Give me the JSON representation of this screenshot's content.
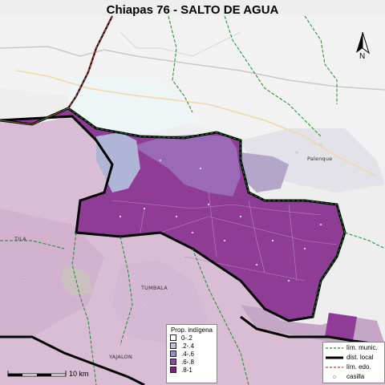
{
  "title": "Chiapas 76 - SALTO DE AGUA",
  "place_labels": {
    "palenque": "Palenque",
    "tila": "TILA",
    "tumbala": "TUMBALA",
    "yajalon": "YAJALON"
  },
  "legend_prop": {
    "title": "Prop. indígena",
    "items": [
      {
        "label": "0-.2",
        "color": "#ffffff"
      },
      {
        "label": ".2-.4",
        "color": "#b9c3de"
      },
      {
        "label": ".4-.6",
        "color": "#9d88c6"
      },
      {
        "label": ".6-.8",
        "color": "#8a4aa3"
      },
      {
        "label": ".8-1",
        "color": "#7a1f7e"
      }
    ]
  },
  "legend_lines": {
    "items": [
      {
        "label": "lím. munic.",
        "icon": "green-dashed-line"
      },
      {
        "label": "dist. local",
        "icon": "black-thick-line"
      },
      {
        "label": "lím. edo.",
        "icon": "red-dashed-line"
      },
      {
        "label": "casilla",
        "icon": "dot-marker"
      }
    ]
  },
  "scale": {
    "label": "10 km"
  },
  "north_arrow": {
    "label": "N"
  },
  "colors": {
    "district_fill": "#8e3c95",
    "district_fill_light": "#9a6ab6",
    "district_fill_blue": "#aeb5d6",
    "outside_pink": "#d8b9d2",
    "basemap_land": "#efefef",
    "basemap_light_green": "#dfece0",
    "municipal_boundary": "#1b8a2b",
    "state_boundary": "#c0392b",
    "district_boundary": "#000000"
  }
}
